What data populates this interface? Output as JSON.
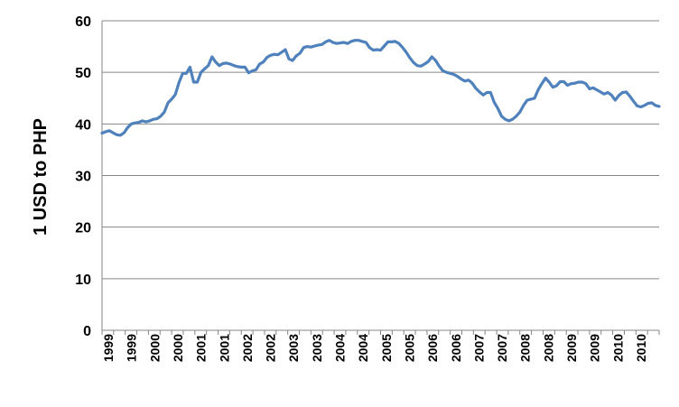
{
  "chart_data": {
    "type": "line",
    "title": "",
    "xlabel": "",
    "ylabel": "1 USD to PHP",
    "ylim": [
      0,
      60
    ],
    "yticks": [
      0,
      10,
      20,
      30,
      40,
      50,
      60
    ],
    "grid": "horizontal",
    "legend": "none",
    "x_tick_labels": [
      "1999",
      "1999",
      "2000",
      "2000",
      "2001",
      "2001",
      "2002",
      "2002",
      "2003",
      "2003",
      "2004",
      "2004",
      "2005",
      "2005",
      "2006",
      "2006",
      "2007",
      "2007",
      "2008",
      "2008",
      "2009",
      "2009",
      "2010",
      "2010"
    ],
    "series": [
      {
        "color": "#4f81bd",
        "values": [
          38.2,
          38.5,
          38.7,
          38.3,
          37.9,
          37.8,
          38.3,
          39.3,
          40.0,
          40.2,
          40.3,
          40.6,
          40.4,
          40.6,
          40.9,
          41.0,
          41.5,
          42.3,
          44.1,
          44.8,
          45.7,
          48.0,
          49.8,
          49.8,
          51.0,
          48.1,
          48.1,
          50.0,
          50.7,
          51.3,
          53.0,
          52.0,
          51.3,
          51.7,
          51.8,
          51.6,
          51.3,
          51.1,
          51.0,
          51.0,
          49.9,
          50.3,
          50.5,
          51.6,
          52.0,
          52.9,
          53.3,
          53.5,
          53.4,
          53.9,
          54.4,
          52.6,
          52.3,
          53.2,
          53.7,
          54.8,
          55.0,
          54.9,
          55.1,
          55.3,
          55.4,
          55.9,
          56.2,
          55.8,
          55.6,
          55.7,
          55.8,
          55.6,
          56.0,
          56.2,
          56.2,
          56.0,
          55.8,
          54.8,
          54.3,
          54.4,
          54.3,
          55.1,
          55.9,
          55.9,
          56.0,
          55.6,
          54.8,
          53.9,
          52.8,
          51.9,
          51.3,
          51.2,
          51.6,
          52.1,
          53.0,
          52.3,
          51.2,
          50.3,
          50.0,
          49.8,
          49.6,
          49.2,
          48.7,
          48.3,
          48.5,
          47.9,
          46.9,
          46.2,
          45.6,
          46.1,
          46.1,
          44.2,
          43.0,
          41.5,
          40.9,
          40.6,
          40.9,
          41.5,
          42.3,
          43.6,
          44.6,
          44.8,
          45.0,
          46.6,
          47.8,
          48.9,
          48.1,
          47.1,
          47.4,
          48.2,
          48.2,
          47.5,
          47.8,
          47.9,
          48.1,
          48.1,
          47.8,
          46.8,
          47.0,
          46.6,
          46.2,
          45.8,
          46.1,
          45.6,
          44.6,
          45.5,
          46.1,
          46.2,
          45.4,
          44.4,
          43.5,
          43.3,
          43.6,
          44.0,
          44.1,
          43.6,
          43.4
        ]
      }
    ]
  }
}
